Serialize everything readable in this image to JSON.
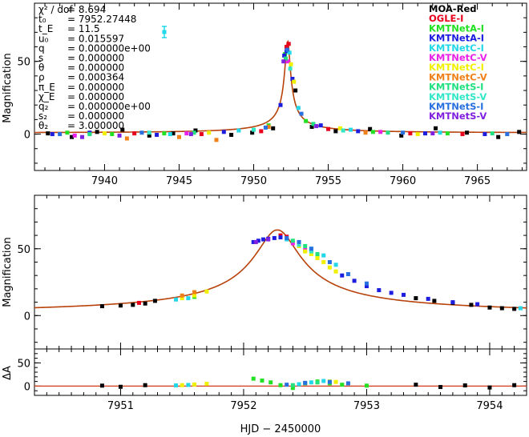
{
  "chart_data": [
    {
      "type": "scatter",
      "panel": "top",
      "ylabel": "Magnification",
      "xlim": [
        7935.3,
        7968.3
      ],
      "ylim": [
        -25,
        90
      ],
      "xticks": [
        7940,
        7945,
        7950,
        7955,
        7960,
        7965
      ],
      "yticks": [
        0,
        50
      ],
      "x_tick_labels": [
        "7940",
        "7945",
        "7950",
        "7955",
        "7960",
        "7965"
      ],
      "y_tick_labels": [
        "0",
        "50"
      ],
      "model": {
        "t0": 7952.27448,
        "tE": 11.5,
        "u0": 0.015597,
        "peak": 64
      },
      "params": [
        {
          "name": "χ² / dof",
          "value": "= 8.694"
        },
        {
          "name": "t₀",
          "value": "= 7952.27448"
        },
        {
          "name": "t_E",
          "value": "= 11.5"
        },
        {
          "name": "u₀",
          "value": "= 0.015597"
        },
        {
          "name": "q",
          "value": "= 0.000000e+00"
        },
        {
          "name": "s",
          "value": "= 0.000000"
        },
        {
          "name": "θ",
          "value": "= 0.000000"
        },
        {
          "name": "ρ",
          "value": "= 0.000364"
        },
        {
          "name": "π_E",
          "value": "= 0.000000"
        },
        {
          "name": "χ_E",
          "value": "= 0.000000"
        },
        {
          "name": "q₂",
          "value": "= 0.000000e+00"
        },
        {
          "name": "s₂",
          "value": "= 0.000000"
        },
        {
          "name": "θ₂",
          "value": "= 3.000000"
        }
      ],
      "legend": [
        {
          "label": "MOA-Red",
          "color": "#000000"
        },
        {
          "label": "OGLE-I",
          "color": "#e8001c"
        },
        {
          "label": "KMTNetA-I",
          "color": "#22e022"
        },
        {
          "label": "KMTNetA-I",
          "color": "#1d1de0"
        },
        {
          "label": "KMTNetC-I",
          "color": "#22d8e8"
        },
        {
          "label": "KMTNetC-V",
          "color": "#e822e8"
        },
        {
          "label": "KMTNetC-I",
          "color": "#f0f000"
        },
        {
          "label": "KMTNetC-V",
          "color": "#f08018"
        },
        {
          "label": "KMTNetS-I",
          "color": "#20e080"
        },
        {
          "label": "KMTNetS-V",
          "color": "#30e8c8"
        },
        {
          "label": "KMTNetS-I",
          "color": "#2870e0"
        },
        {
          "label": "KMTNetS-V",
          "color": "#8020e0"
        }
      ],
      "series": [
        {
          "name": "MOA-Red",
          "x": [
            7936.2,
            7937.8,
            7939.5,
            7941.2,
            7943.0,
            7944.6,
            7946.1,
            7948.5,
            7949.9,
            7951.3,
            7952.8,
            7953.9,
            7955.5,
            7957.8,
            7959.9,
            7962.2,
            7964.3,
            7966.4,
            7967.8
          ],
          "y": [
            0.5,
            -2.0,
            1.5,
            3.0,
            -1.0,
            0.5,
            2.5,
            -0.5,
            1.0,
            4.0,
            30.0,
            5.0,
            2.0,
            3.5,
            -1.0,
            4.0,
            1.0,
            -2.0,
            1.5
          ]
        },
        {
          "name": "OGLE-I",
          "x": [
            7942.0,
            7946.5,
            7950.5,
            7952.2,
            7952.35,
            7955.0,
            7960.5,
            7964.0
          ],
          "y": [
            0.5,
            0.0,
            2.0,
            60.0,
            62.0,
            3.5,
            0.5,
            0.0
          ]
        },
        {
          "name": "KMTNetA-I",
          "x": [
            7937.5,
            7940.5,
            7944.0,
            7951.0,
            7952.1,
            7953.5,
            7958.0,
            7963.0
          ],
          "y": [
            1.0,
            0.0,
            0.5,
            6.0,
            55.0,
            9.0,
            1.5,
            0.5
          ]
        },
        {
          "name": "KMTNetA-I",
          "x": [
            7936.5,
            7939.0,
            7943.5,
            7948.0,
            7951.8,
            7952.05,
            7952.2,
            7952.6,
            7954.5,
            7957.0,
            7961.5,
            7965.5
          ],
          "y": [
            0.0,
            1.0,
            -0.5,
            1.5,
            20.0,
            54.0,
            57.0,
            38.0,
            6.0,
            2.0,
            0.5,
            0.0
          ]
        },
        {
          "name": "KMTNetC-I",
          "x": [
            7944.4,
            7949.0,
            7952.4,
            7953.0,
            7956.5,
            7962.5
          ],
          "y": [
            0.0,
            2.5,
            56.0,
            18.0,
            3.0,
            1.0
          ]
        },
        {
          "name": "KMTNetC-V",
          "x": [
            7938.0,
            7945.5,
            7952.3,
            7958.5
          ],
          "y": [
            -1.0,
            0.5,
            50.0,
            1.5
          ]
        },
        {
          "name": "KMTNetC-I",
          "x": [
            7940.0,
            7947.0,
            7952.5,
            7952.7,
            7955.8,
            7961.0
          ],
          "y": [
            0.5,
            1.0,
            48.0,
            36.0,
            4.0,
            0.0
          ]
        },
        {
          "name": "KMTNetC-V",
          "x": [
            7941.5,
            7945.0,
            7947.5,
            7951.0,
            7957.5
          ],
          "y": [
            -3.0,
            -2.0,
            -4.0,
            5.0,
            1.0
          ]
        },
        {
          "name": "KMTNetS-I",
          "x": [
            7939.0,
            7946.0,
            7952.15,
            7954.0,
            7959.0,
            7966.0
          ],
          "y": [
            0.0,
            1.0,
            52.0,
            7.0,
            1.0,
            0.5
          ]
        },
        {
          "name": "KMTNetS-V",
          "x": [
            7943.0,
            7950.0,
            7952.45,
            7956.0
          ],
          "y": [
            1.0,
            3.0,
            45.0,
            2.5
          ]
        },
        {
          "name": "KMTNetS-I",
          "x": [
            7937.0,
            7942.5,
            7950.8,
            7952.25,
            7953.2,
            7960.0,
            7967.0
          ],
          "y": [
            0.0,
            1.0,
            4.5,
            58.0,
            14.0,
            1.0,
            0.0
          ]
        },
        {
          "name": "KMTNetS-V",
          "x": [
            7938.5,
            7941.0,
            7945.8,
            7952.0,
            7954.2,
            7962.0
          ],
          "y": [
            -2.0,
            -1.0,
            0.0,
            50.0,
            5.5,
            0.5
          ]
        }
      ]
    },
    {
      "type": "scatter",
      "panel": "middle",
      "ylabel": "Magnification",
      "xlim": [
        7950.3,
        7954.3
      ],
      "ylim": [
        -25,
        90
      ],
      "yticks": [
        0,
        50
      ],
      "y_tick_labels": [
        "0",
        "50"
      ],
      "series": [
        {
          "name": "MOA-Red",
          "x": [
            7950.85,
            7951.0,
            7951.1,
            7951.2,
            7951.28,
            7953.4,
            7953.55,
            7953.7,
            7953.85,
            7954.0,
            7954.1,
            7954.2
          ],
          "y": [
            7.0,
            7.5,
            8.0,
            9.0,
            11.0,
            13.0,
            11.0,
            9.5,
            8.0,
            6.0,
            5.5,
            5.0
          ]
        },
        {
          "name": "OGLE-I",
          "x": [
            7951.15,
            7952.3,
            7952.35
          ],
          "y": [
            9.5,
            60.0,
            59.0
          ]
        },
        {
          "name": "KMTNetA-I",
          "x": [
            7951.6,
            7952.55,
            7952.6
          ],
          "y": [
            14.0,
            48.0,
            44.0
          ]
        },
        {
          "name": "KMTNetA-I",
          "x": [
            7952.08,
            7952.12,
            7952.16,
            7952.2,
            7952.25,
            7952.3,
            7952.8,
            7952.9,
            7953.0,
            7953.1,
            7953.2,
            7953.3,
            7953.5,
            7953.7,
            7953.9
          ],
          "y": [
            55.0,
            56.0,
            57.0,
            57.5,
            58.0,
            58.5,
            30.0,
            26.0,
            22.0,
            19.0,
            17.0,
            15.5,
            12.5,
            10.0,
            8.5
          ]
        },
        {
          "name": "KMTNetC-I",
          "x": [
            7951.45,
            7951.55,
            7952.35,
            7952.45,
            7952.55,
            7952.65,
            7952.75,
            7954.25
          ],
          "y": [
            12.0,
            13.0,
            57.0,
            55.0,
            50.0,
            45.0,
            38.0,
            5.5
          ]
        },
        {
          "name": "KMTNetC-V",
          "x": [
            7952.4,
            7952.5
          ],
          "y": [
            54.0,
            49.0
          ]
        },
        {
          "name": "KMTNetC-I",
          "x": [
            7951.5,
            7951.6,
            7951.7,
            7952.45,
            7952.5,
            7952.55,
            7952.6,
            7952.65,
            7952.7,
            7952.75
          ],
          "y": [
            13.0,
            15.0,
            18.0,
            52.0,
            48.0,
            46.0,
            43.0,
            40.0,
            36.0,
            33.0
          ]
        },
        {
          "name": "KMTNetC-V",
          "x": [
            7951.5,
            7951.6
          ],
          "y": [
            15.0,
            17.5
          ]
        },
        {
          "name": "KMTNetS-I",
          "x": [
            7952.4,
            7952.5,
            7952.6
          ],
          "y": [
            56.0,
            52.0,
            46.0
          ]
        },
        {
          "name": "KMTNetS-V",
          "x": [
            7952.45,
            7952.55
          ],
          "y": [
            53.0,
            48.0
          ]
        },
        {
          "name": "KMTNetS-I",
          "x": [
            7952.35,
            7952.45,
            7952.55,
            7952.7,
            7952.85,
            7953.0
          ],
          "y": [
            58.0,
            55.0,
            50.0,
            40.0,
            31.0,
            24.0
          ]
        },
        {
          "name": "KMTNetS-V",
          "x": [
            7952.1,
            7952.2
          ],
          "y": [
            55.0,
            57.0
          ]
        }
      ]
    },
    {
      "type": "scatter",
      "panel": "residual",
      "xlabel": "HJD − 2450000",
      "ylabel": "ΔA",
      "xlim": [
        7950.3,
        7954.3
      ],
      "ylim": [
        -20,
        80
      ],
      "xticks": [
        7951,
        7952,
        7953,
        7954
      ],
      "yticks": [
        0,
        50
      ],
      "x_tick_labels": [
        "7951",
        "7952",
        "7953",
        "7954"
      ],
      "y_tick_labels": [
        "0",
        "50"
      ],
      "series": [
        {
          "name": "MOA-Red",
          "x": [
            7950.85,
            7951.0,
            7951.2,
            7953.4,
            7953.6,
            7953.8,
            7954.0,
            7954.2
          ],
          "y": [
            1.0,
            -1.5,
            2.0,
            3.0,
            -2.0,
            1.5,
            -3.0,
            2.0
          ]
        },
        {
          "name": "KMTNetA-I",
          "x": [
            7952.08,
            7952.15,
            7952.22,
            7952.3,
            7952.4,
            7952.5,
            7952.6,
            7952.7,
            7952.8,
            7953.0
          ],
          "y": [
            16.0,
            12.0,
            8.0,
            2.0,
            -4.0,
            6.0,
            10.0,
            6.0,
            3.0,
            1.0
          ]
        },
        {
          "name": "KMTNetC-I",
          "x": [
            7951.45,
            7951.55,
            7952.45,
            7952.55,
            7952.65
          ],
          "y": [
            1.5,
            2.5,
            4.0,
            8.0,
            11.0
          ]
        },
        {
          "name": "KMTNetC-I",
          "x": [
            7951.5,
            7951.6,
            7951.7,
            7952.5,
            7952.6,
            7952.7,
            7952.75
          ],
          "y": [
            2.0,
            3.5,
            5.0,
            6.0,
            8.0,
            10.0,
            9.0
          ]
        },
        {
          "name": "KMTNetS-I",
          "x": [
            7952.4,
            7952.5,
            7952.6
          ],
          "y": [
            2.0,
            6.0,
            8.0
          ]
        },
        {
          "name": "KMTNetS-I",
          "x": [
            7952.35,
            7952.5,
            7952.7,
            7952.85
          ],
          "y": [
            3.0,
            7.0,
            9.0,
            6.0
          ]
        }
      ]
    }
  ]
}
